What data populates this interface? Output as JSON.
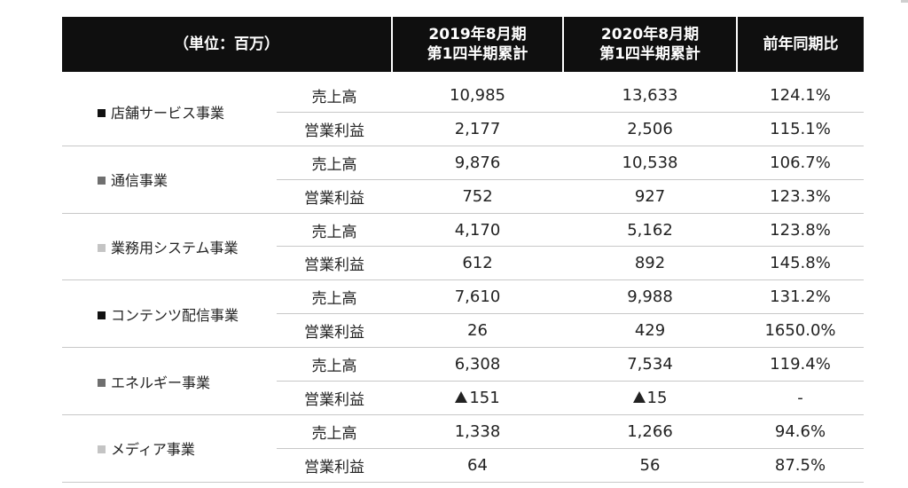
{
  "header": {
    "unit": "（単位：百万）",
    "col1_line1": "2019年8月期",
    "col1_line2": "第1四半期累計",
    "col2_line1": "2020年8月期",
    "col2_line2": "第1四半期累計",
    "col3": "前年同期比"
  },
  "segments": [
    {
      "name": "店舗サービス事業",
      "marker_color": "#111111",
      "rows": [
        {
          "metric": "売上高",
          "prev": "10,985",
          "curr": "13,633",
          "ratio": "124.1%"
        },
        {
          "metric": "営業利益",
          "prev": "2,177",
          "curr": "2,506",
          "ratio": "115.1%"
        }
      ]
    },
    {
      "name": "通信事業",
      "marker_color": "#6f6f6f",
      "rows": [
        {
          "metric": "売上高",
          "prev": "9,876",
          "curr": "10,538",
          "ratio": "106.7%"
        },
        {
          "metric": "営業利益",
          "prev": "752",
          "curr": "927",
          "ratio": "123.3%"
        }
      ]
    },
    {
      "name": "業務用システム事業",
      "marker_color": "#c4c4c4",
      "rows": [
        {
          "metric": "売上高",
          "prev": "4,170",
          "curr": "5,162",
          "ratio": "123.8%"
        },
        {
          "metric": "営業利益",
          "prev": "612",
          "curr": "892",
          "ratio": "145.8%"
        }
      ]
    },
    {
      "name": "コンテンツ配信事業",
      "marker_color": "#111111",
      "rows": [
        {
          "metric": "売上高",
          "prev": "7,610",
          "curr": "9,988",
          "ratio": "131.2%"
        },
        {
          "metric": "営業利益",
          "prev": "26",
          "curr": "429",
          "ratio": "1650.0%"
        }
      ]
    },
    {
      "name": "エネルギー事業",
      "marker_color": "#6f6f6f",
      "rows": [
        {
          "metric": "売上高",
          "prev": "6,308",
          "curr": "7,534",
          "ratio": "119.4%"
        },
        {
          "metric": "営業利益",
          "prev": "151",
          "prev_negative": true,
          "curr": "15",
          "curr_negative": true,
          "ratio": "-"
        }
      ]
    },
    {
      "name": "メディア事業",
      "marker_color": "#c4c4c4",
      "rows": [
        {
          "metric": "売上高",
          "prev": "1,338",
          "curr": "1,266",
          "ratio": "94.6%"
        },
        {
          "metric": "営業利益",
          "prev": "64",
          "curr": "56",
          "ratio": "87.5%"
        }
      ]
    }
  ]
}
